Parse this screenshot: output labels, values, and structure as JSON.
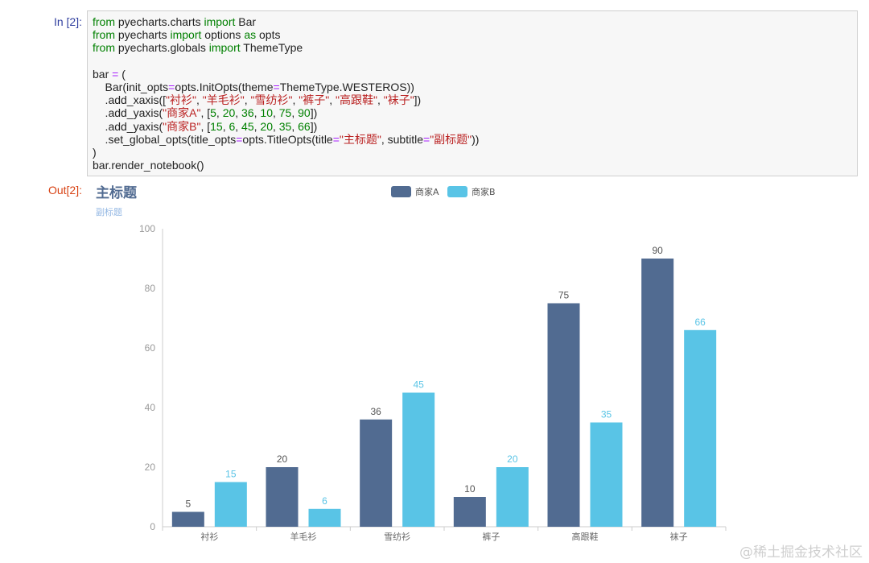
{
  "cell": {
    "in_prompt": "In [2]:",
    "out_prompt": "Out[2]:",
    "code_lines": [
      "from pyecharts.charts import Bar",
      "from pyecharts import options as opts",
      "from pyecharts.globals import ThemeType",
      "",
      "bar = (",
      "    Bar(init_opts=opts.InitOpts(theme=ThemeType.WESTEROS))",
      "    .add_xaxis([\"衬衫\", \"羊毛衫\", \"雪纺衫\", \"裤子\", \"高跟鞋\", \"袜子\"])",
      "    .add_yaxis(\"商家A\", [5, 20, 36, 10, 75, 90])",
      "    .add_yaxis(\"商家B\", [15, 6, 45, 20, 35, 66])",
      "    .set_global_opts(title_opts=opts.TitleOpts(title=\"主标题\", subtitle=\"副标题\"))",
      ")",
      "bar.render_notebook()"
    ]
  },
  "chart_data": {
    "type": "bar",
    "title": "主标题",
    "subtitle": "副标题",
    "categories": [
      "衬衫",
      "羊毛衫",
      "雪纺衫",
      "裤子",
      "高跟鞋",
      "袜子"
    ],
    "series": [
      {
        "name": "商家A",
        "values": [
          5,
          20,
          36,
          10,
          75,
          90
        ],
        "color": "#516b91"
      },
      {
        "name": "商家B",
        "values": [
          15,
          6,
          45,
          20,
          35,
          66
        ],
        "color": "#59c4e6"
      }
    ],
    "ylim": [
      0,
      100
    ],
    "yticks": [
      0,
      20,
      40,
      60,
      80,
      100
    ],
    "legend_position": "top-center",
    "grid": false,
    "theme_colors": {
      "title": "#516b91",
      "subtitle": "#93b7e3",
      "axis": "#cccccc",
      "tick_text": "#999999"
    }
  },
  "watermark": "@稀土掘金技术社区"
}
